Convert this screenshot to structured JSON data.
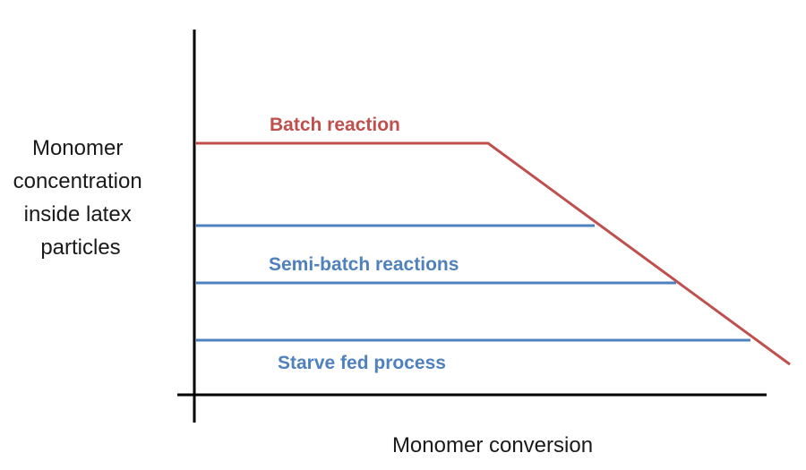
{
  "diagram": {
    "y_axis_label_lines": [
      "Monomer",
      "concentration",
      "inside latex",
      "particles"
    ],
    "x_axis_label": "Monomer conversion",
    "labels": {
      "batch": "Batch reaction",
      "semi_batch": "Semi-batch reactions",
      "starve_fed": "Starve fed process"
    },
    "colors": {
      "batch": "#c0504d",
      "process": "#4f81bd",
      "axis": "#000000"
    }
  }
}
